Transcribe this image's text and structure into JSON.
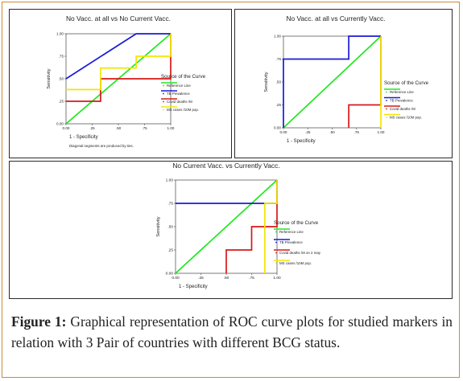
{
  "caption": {
    "label": "Figure 1:",
    "text": "Graphical representation of ROC curve plots for studied markers in relation with 3 Pair of countries with different BCG status."
  },
  "colors": {
    "reference": "#1ee81e",
    "tb": "#1a1ad8",
    "covid": "#d81818",
    "ms": "#f2e600",
    "frame": "#c98a3c"
  },
  "chart_data": [
    {
      "type": "line",
      "title": "No Vacc. at all vs No Current Vacc.",
      "xlabel": "1 - Specificity",
      "ylabel": "Sensitivity",
      "xlim": [
        0,
        1
      ],
      "ylim": [
        0,
        1
      ],
      "xticks": [
        "0.00",
        ".25",
        ".50",
        ".75",
        "1.00"
      ],
      "yticks": [
        "0.00",
        ".25",
        ".50",
        ".75",
        "1.00"
      ],
      "legend_title": "Source of the Curve",
      "legend_position": "right",
      "footnote": "Diagonal segments are produced by ties.",
      "series": [
        {
          "name": "Reference Line",
          "color_key": "reference",
          "points": [
            [
              0,
              0
            ],
            [
              1,
              1
            ]
          ]
        },
        {
          "name": "TB Prevalence",
          "color_key": "tb",
          "points": [
            [
              0,
              0.5
            ],
            [
              0.67,
              1
            ],
            [
              1,
              1
            ]
          ]
        },
        {
          "name": "Covid deaths /M",
          "color_key": "covid",
          "points": [
            [
              0,
              0.25
            ],
            [
              0.33,
              0.25
            ],
            [
              0.33,
              0.5
            ],
            [
              1,
              0.5
            ],
            [
              1,
              1
            ]
          ]
        },
        {
          "name": "MS cases /10M pop.",
          "color_key": "ms",
          "points": [
            [
              0,
              0.38
            ],
            [
              0.33,
              0.38
            ],
            [
              0.33,
              0.62
            ],
            [
              0.67,
              0.62
            ],
            [
              0.67,
              0.75
            ],
            [
              1,
              0.75
            ],
            [
              1,
              1
            ]
          ]
        }
      ]
    },
    {
      "type": "line",
      "title": "No Vacc. at all vs Currently Vacc.",
      "xlabel": "1 - Specificity",
      "ylabel": "Sensitivity",
      "xlim": [
        0,
        1
      ],
      "ylim": [
        0,
        1
      ],
      "xticks": [
        "0.00",
        ".25",
        ".50",
        ".75",
        "1.00"
      ],
      "yticks": [
        "0.00",
        ".25",
        ".50",
        ".75",
        "1.00"
      ],
      "legend_title": "Source of the Curve",
      "legend_position": "right",
      "series": [
        {
          "name": "Reference Line",
          "color_key": "reference",
          "points": [
            [
              0,
              0
            ],
            [
              1,
              1
            ]
          ]
        },
        {
          "name": "TB Prevalence",
          "color_key": "tb",
          "points": [
            [
              0,
              0
            ],
            [
              0,
              0.75
            ],
            [
              0.67,
              0.75
            ],
            [
              0.67,
              1
            ],
            [
              1,
              1
            ]
          ]
        },
        {
          "name": "Covid deaths /M",
          "color_key": "covid",
          "points": [
            [
              0.67,
              0
            ],
            [
              0.67,
              0.25
            ],
            [
              1,
              0.25
            ],
            [
              1,
              1
            ]
          ]
        },
        {
          "name": "MS cases /10M pop.",
          "color_key": "ms",
          "points": [
            [
              1,
              0
            ],
            [
              1,
              1
            ]
          ]
        }
      ]
    },
    {
      "type": "line",
      "title": "No Current Vacc. vs Currently Vacc.",
      "xlabel": "1 - Specificity",
      "ylabel": "Sensitivity",
      "xlim": [
        0,
        1
      ],
      "ylim": [
        0,
        1
      ],
      "xticks": [
        "0.00",
        ".25",
        ".50",
        ".75",
        "1.00"
      ],
      "yticks": [
        "0.00",
        ".25",
        ".50",
        ".75",
        "1.00"
      ],
      "legend_title": "Source of the Curve",
      "legend_position": "right",
      "series": [
        {
          "name": "Reference Line",
          "color_key": "reference",
          "points": [
            [
              0,
              0
            ],
            [
              1,
              1
            ]
          ]
        },
        {
          "name": "TB Prevalence",
          "color_key": "tb",
          "points": [
            [
              0,
              0.75
            ],
            [
              1,
              0.75
            ],
            [
              1,
              1
            ]
          ]
        },
        {
          "name": "Covid deaths /M on 2 may",
          "color_key": "covid",
          "points": [
            [
              0.5,
              0
            ],
            [
              0.5,
              0.25
            ],
            [
              0.75,
              0.25
            ],
            [
              0.75,
              0.5
            ],
            [
              1,
              0.5
            ],
            [
              1,
              1
            ]
          ]
        },
        {
          "name": "MS cases /10M pop.",
          "color_key": "ms",
          "points": [
            [
              0.88,
              0
            ],
            [
              0.88,
              0.75
            ],
            [
              1,
              0.75
            ],
            [
              1,
              1
            ]
          ]
        }
      ]
    }
  ]
}
